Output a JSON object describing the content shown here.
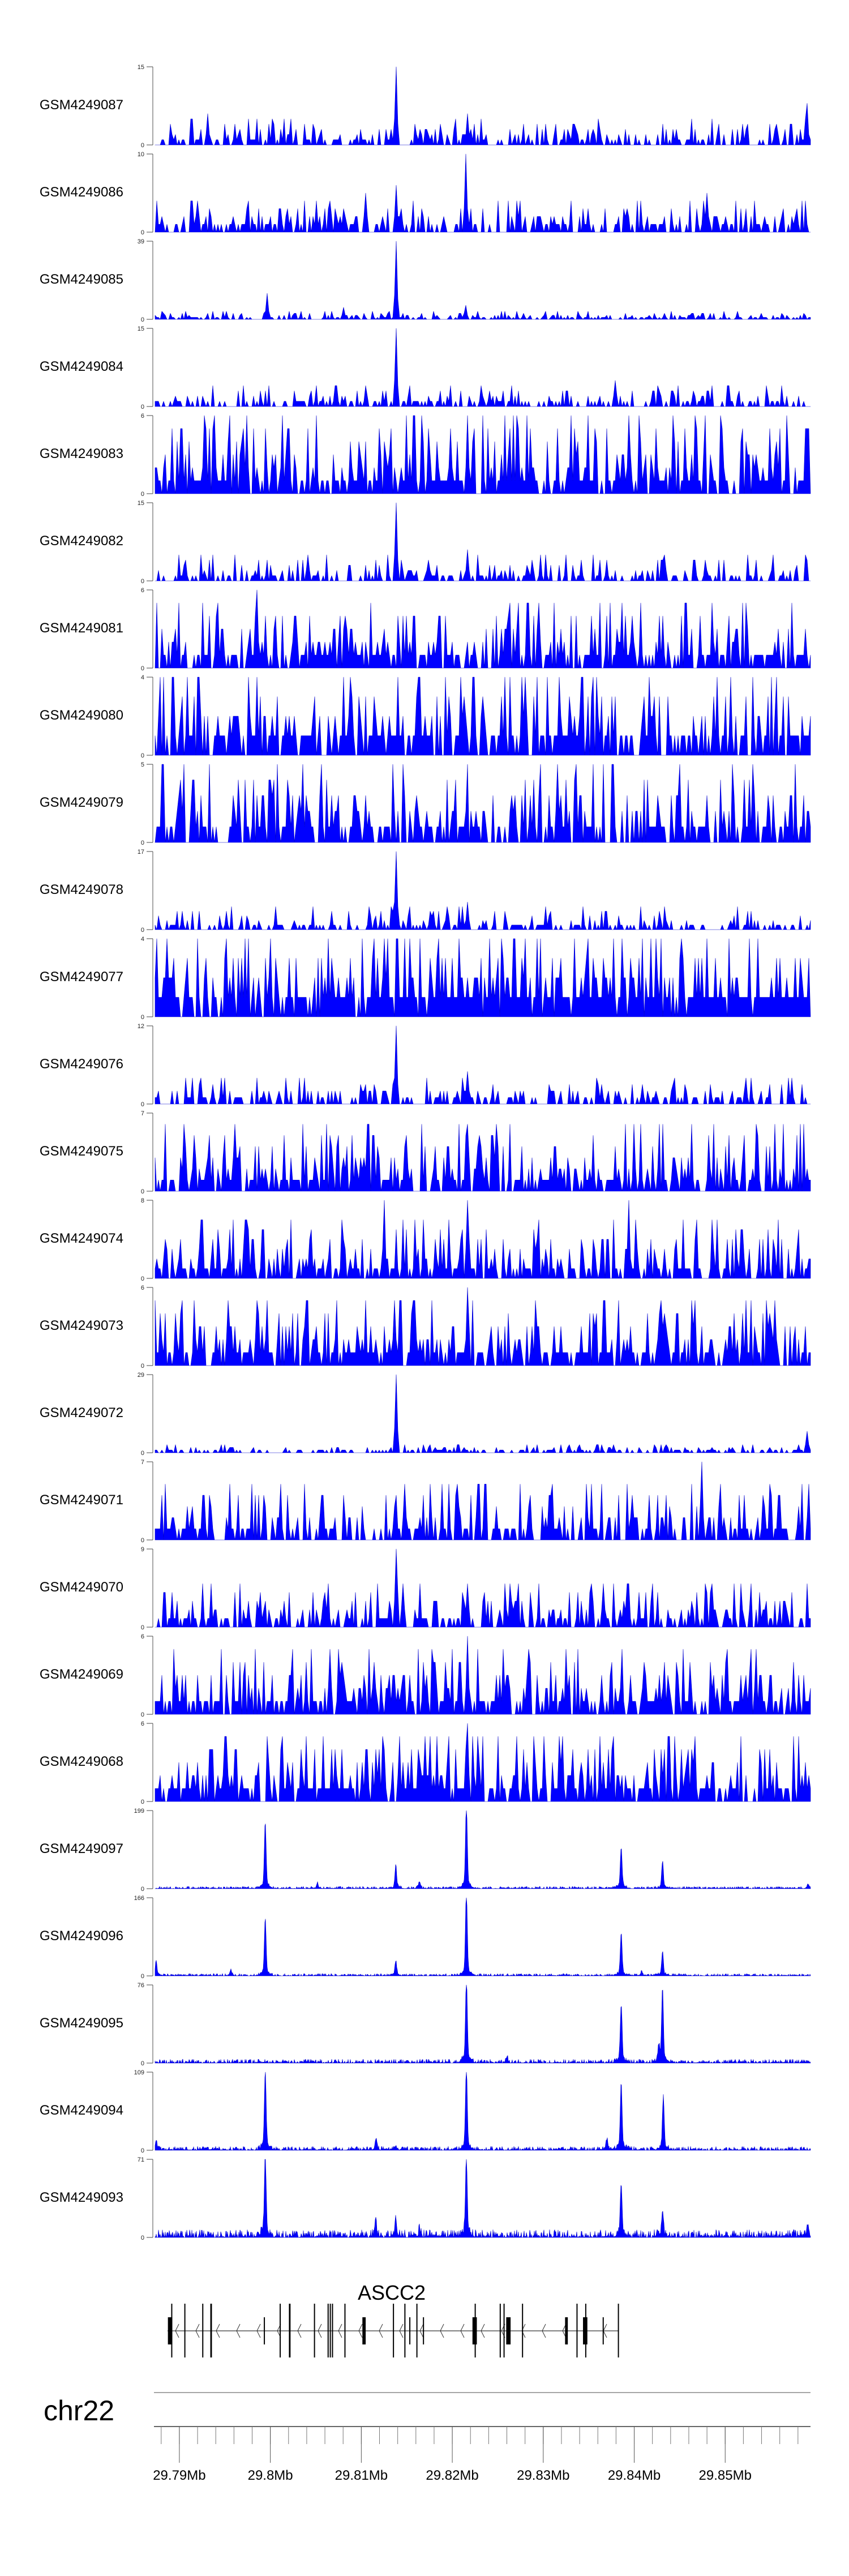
{
  "chart_data": {
    "type": "area",
    "title": "",
    "xlabel": "",
    "chromosome": "chr22",
    "xlim_mb": [
      29.78733,
      29.85938
    ],
    "x_ticks": [
      "29.79Mb",
      "29.8Mb",
      "29.81Mb",
      "29.82Mb",
      "29.83Mb",
      "29.84Mb",
      "29.85Mb"
    ],
    "x_tick_values": [
      29.79,
      29.8,
      29.81,
      29.82,
      29.83,
      29.84,
      29.85
    ],
    "minor_tick_step_mb": 0.002,
    "fill_color": "#0000FF",
    "tracks": [
      {
        "name": "GSM4249087",
        "ymin": 0,
        "ymax": 15,
        "style": "spiky",
        "bg": 5,
        "density": 0.55,
        "peaks": [
          [
            29.8139,
            15
          ],
          [
            29.859,
            8
          ],
          [
            29.7932,
            6
          ],
          [
            29.8216,
            6
          ]
        ]
      },
      {
        "name": "GSM4249086",
        "ymin": 0,
        "ymax": 10,
        "style": "spiky",
        "bg": 4,
        "density": 0.6,
        "peaks": [
          [
            29.8215,
            10
          ],
          [
            29.8138,
            6
          ],
          [
            29.8105,
            5
          ],
          [
            29.848,
            5
          ]
        ]
      },
      {
        "name": "GSM4249085",
        "ymin": 0,
        "ymax": 39,
        "style": "spiky",
        "bg": 4,
        "density": 0.5,
        "peaks": [
          [
            29.8139,
            39
          ],
          [
            29.7996,
            13
          ],
          [
            29.8215,
            7
          ],
          [
            29.808,
            6
          ]
        ]
      },
      {
        "name": "GSM4249084",
        "ymin": 0,
        "ymax": 15,
        "style": "spiky",
        "bg": 4,
        "density": 0.5,
        "peaks": [
          [
            29.8139,
            15
          ],
          [
            29.838,
            5
          ]
        ]
      },
      {
        "name": "GSM4249083",
        "ymin": 0,
        "ymax": 6,
        "style": "spiky",
        "bg": 6,
        "density": 0.75,
        "peaks": [
          [
            29.7975,
            6
          ],
          [
            29.8216,
            6
          ],
          [
            29.859,
            5
          ]
        ]
      },
      {
        "name": "GSM4249082",
        "ymin": 0,
        "ymax": 15,
        "style": "spiky",
        "bg": 5,
        "density": 0.5,
        "peaks": [
          [
            29.8139,
            15
          ],
          [
            29.8216,
            6
          ]
        ]
      },
      {
        "name": "GSM4249081",
        "ymin": 0,
        "ymax": 6,
        "style": "spiky",
        "bg": 5,
        "density": 0.75,
        "peaks": [
          [
            29.7986,
            6
          ]
        ]
      },
      {
        "name": "GSM4249080",
        "ymin": 0,
        "ymax": 4,
        "style": "spiky",
        "bg": 4,
        "density": 0.75,
        "peaks": [
          [
            29.828,
            4
          ]
        ]
      },
      {
        "name": "GSM4249079",
        "ymin": 0,
        "ymax": 5,
        "style": "spiky",
        "bg": 5,
        "density": 0.7,
        "peaks": [
          [
            29.8315,
            5
          ]
        ]
      },
      {
        "name": "GSM4249078",
        "ymin": 0,
        "ymax": 17,
        "style": "spiky",
        "bg": 5,
        "density": 0.5,
        "peaks": [
          [
            29.8139,
            17
          ],
          [
            29.8216,
            6
          ]
        ]
      },
      {
        "name": "GSM4249077",
        "ymin": 0,
        "ymax": 4,
        "style": "spiky",
        "bg": 4,
        "density": 0.85,
        "peaks": [
          [
            29.8,
            4
          ]
        ]
      },
      {
        "name": "GSM4249076",
        "ymin": 0,
        "ymax": 12,
        "style": "spiky",
        "bg": 4,
        "density": 0.5,
        "peaks": [
          [
            29.8139,
            12
          ],
          [
            29.8216,
            5
          ]
        ]
      },
      {
        "name": "GSM4249075",
        "ymin": 0,
        "ymax": 7,
        "style": "spiky",
        "bg": 6,
        "density": 0.7,
        "peaks": [
          [
            29.7905,
            6
          ],
          [
            29.8216,
            6
          ]
        ]
      },
      {
        "name": "GSM4249074",
        "ymin": 0,
        "ymax": 8,
        "style": "spiky",
        "bg": 6,
        "density": 0.7,
        "peaks": [
          [
            29.8125,
            8
          ],
          [
            29.8216,
            8
          ],
          [
            29.8395,
            8
          ]
        ]
      },
      {
        "name": "GSM4249073",
        "ymin": 0,
        "ymax": 6,
        "style": "spiky",
        "bg": 5,
        "density": 0.75,
        "peaks": [
          [
            29.7985,
            5
          ],
          [
            29.8216,
            6
          ],
          [
            29.8555,
            5
          ]
        ]
      },
      {
        "name": "GSM4249072",
        "ymin": 0,
        "ymax": 29,
        "style": "spiky",
        "bg": 3,
        "density": 0.5,
        "peaks": [
          [
            29.8139,
            29
          ],
          [
            29.859,
            8
          ]
        ]
      },
      {
        "name": "GSM4249071",
        "ymin": 0,
        "ymax": 7,
        "style": "spiky",
        "bg": 5,
        "density": 0.65,
        "peaks": [
          [
            29.8475,
            7
          ],
          [
            29.8147,
            5
          ]
        ]
      },
      {
        "name": "GSM4249070",
        "ymin": 0,
        "ymax": 9,
        "style": "spiky",
        "bg": 5,
        "density": 0.65,
        "peaks": [
          [
            29.8139,
            9
          ],
          [
            29.8216,
            5
          ]
        ]
      },
      {
        "name": "GSM4249069",
        "ymin": 0,
        "ymax": 6,
        "style": "spiky",
        "bg": 5,
        "density": 0.75,
        "peaks": [
          [
            29.8216,
            6
          ],
          [
            29.8065,
            5
          ]
        ]
      },
      {
        "name": "GSM4249068",
        "ymin": 0,
        "ymax": 6,
        "style": "spiky",
        "bg": 5,
        "density": 0.75,
        "peaks": [
          [
            29.8216,
            6
          ],
          [
            29.7952,
            5
          ]
        ]
      },
      {
        "name": "GSM4249097",
        "ymin": 0,
        "ymax": 199,
        "style": "continuous",
        "noise": 0.03,
        "peaks": [
          [
            29.79944,
            155
          ],
          [
            29.80516,
            12
          ],
          [
            29.81379,
            53
          ],
          [
            29.8164,
            16
          ],
          [
            29.82155,
            199
          ],
          [
            29.83857,
            98
          ],
          [
            29.84311,
            63
          ],
          [
            29.8591,
            10
          ]
        ]
      },
      {
        "name": "GSM4249096",
        "ymin": 0,
        "ymax": 166,
        "style": "continuous",
        "noise": 0.03,
        "peaks": [
          [
            29.78745,
            27
          ],
          [
            29.79565,
            11
          ],
          [
            29.79944,
            113
          ],
          [
            29.81379,
            28
          ],
          [
            29.82155,
            166
          ],
          [
            29.83857,
            85
          ],
          [
            29.8408,
            7
          ],
          [
            29.84311,
            46
          ]
        ]
      },
      {
        "name": "GSM4249095",
        "ymin": 0,
        "ymax": 76,
        "style": "continuous",
        "noise": 0.05,
        "peaks": [
          [
            29.82155,
            76
          ],
          [
            29.83857,
            53
          ],
          [
            29.84311,
            66
          ],
          [
            29.8427,
            14
          ],
          [
            29.826,
            5
          ]
        ]
      },
      {
        "name": "GSM4249094",
        "ymin": 0,
        "ymax": 109,
        "style": "continuous",
        "noise": 0.05,
        "peaks": [
          [
            29.78745,
            12
          ],
          [
            29.79944,
            102
          ],
          [
            29.8116,
            14
          ],
          [
            29.81379,
            5
          ],
          [
            29.82155,
            109
          ],
          [
            29.837,
            13
          ],
          [
            29.83857,
            85
          ],
          [
            29.8432,
            69
          ]
        ]
      },
      {
        "name": "GSM4249093",
        "ymin": 0,
        "ymax": 71,
        "style": "continuous",
        "noise": 0.1,
        "peaks": [
          [
            29.79944,
            71
          ],
          [
            29.8116,
            11
          ],
          [
            29.81379,
            16
          ],
          [
            29.8164,
            6
          ],
          [
            29.82155,
            67
          ],
          [
            29.83857,
            44
          ],
          [
            29.84311,
            22
          ],
          [
            29.8591,
            10
          ]
        ]
      }
    ],
    "gene": {
      "label": "ASCC2",
      "strand": "-",
      "start_mb": 29.7887,
      "end_mb": 29.8383,
      "exons": [
        [
          29.78874,
          29.78922,
          "coding"
        ],
        [
          29.7891,
          29.78922,
          "tall"
        ],
        [
          29.79054,
          29.79066,
          "tall"
        ],
        [
          29.79251,
          29.79263,
          "tall"
        ],
        [
          29.7934,
          29.79358,
          "tall"
        ],
        [
          29.79928,
          29.7994,
          "utr"
        ],
        [
          29.80102,
          29.80114,
          "tall"
        ],
        [
          29.80204,
          29.80222,
          "tall"
        ],
        [
          29.80479,
          29.80491,
          "tall"
        ],
        [
          29.80629,
          29.80641,
          "tall"
        ],
        [
          29.80653,
          29.80665,
          "tall"
        ],
        [
          29.80677,
          29.80689,
          "tall"
        ],
        [
          29.80814,
          29.80826,
          "tall"
        ],
        [
          29.81012,
          29.81048,
          "coding"
        ],
        [
          29.81347,
          29.81359,
          "tall"
        ],
        [
          29.81473,
          29.81485,
          "tall"
        ],
        [
          29.81527,
          29.81539,
          "utr"
        ],
        [
          29.81605,
          29.81617,
          "tall"
        ],
        [
          29.81677,
          29.81689,
          "utr"
        ],
        [
          29.82222,
          29.8227,
          "coding"
        ],
        [
          29.82246,
          29.82258,
          "tall"
        ],
        [
          29.82521,
          29.82533,
          "tall"
        ],
        [
          29.82563,
          29.82575,
          "tall"
        ],
        [
          29.82593,
          29.82641,
          "coding"
        ],
        [
          29.82766,
          29.82778,
          "tall"
        ],
        [
          29.8324,
          29.8327,
          "coding"
        ],
        [
          29.83365,
          29.83377,
          "tall"
        ],
        [
          29.83437,
          29.83485,
          "coding"
        ],
        [
          29.83461,
          29.83473,
          "tall"
        ],
        [
          29.83653,
          29.83665,
          "utr"
        ],
        [
          29.8382,
          29.83832,
          "tall"
        ]
      ]
    }
  }
}
